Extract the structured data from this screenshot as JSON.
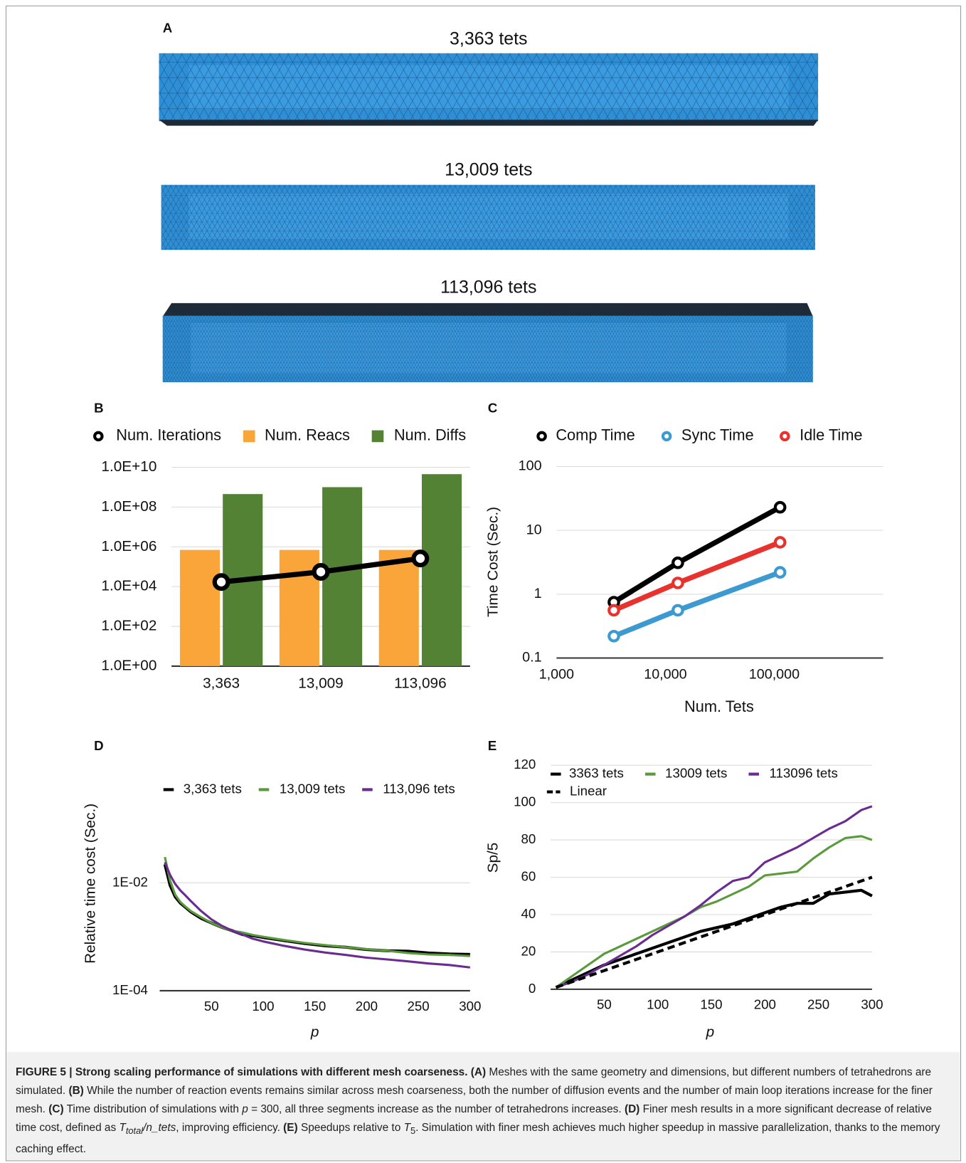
{
  "panel_a": {
    "panel": "A",
    "meshes": [
      "3,363 tets",
      "13,009 tets",
      "113,096 tets"
    ]
  },
  "chart_data": [
    {
      "type": "bar",
      "panel": "B",
      "categories": [
        "3,363",
        "13,009",
        "113,096"
      ],
      "ylog": true,
      "ylim": [
        1,
        10000000000
      ],
      "yticks": [
        {
          "value": 1,
          "label": "1.0E+00"
        },
        {
          "value": 100,
          "label": "1.0E+02"
        },
        {
          "value": 10000,
          "label": "1.0E+04"
        },
        {
          "value": 1000000,
          "label": "1.0E+06"
        },
        {
          "value": 100000000,
          "label": "1.0E+08"
        },
        {
          "value": 10000000000,
          "label": "1.0E+10"
        }
      ],
      "grid": true,
      "markers": true,
      "series": [
        {
          "name": "Num. Iterations",
          "type": "line",
          "color": "#000000",
          "values": [
            17000,
            55000,
            260000
          ]
        },
        {
          "name": "Num. Reacs",
          "type": "bar",
          "color": "#f9a53a",
          "values": [
            700000,
            700000,
            700000
          ]
        },
        {
          "name": "Num. Diffs",
          "type": "bar",
          "color": "#548235",
          "values": [
            450000000,
            1000000000,
            4500000000
          ]
        }
      ]
    },
    {
      "type": "line",
      "panel": "C",
      "xlabel": "Num. Tets",
      "ylabel": "Time Cost (Sec.)",
      "xlog": true,
      "ylog": true,
      "x": [
        3363,
        13009,
        113096
      ],
      "xlim": [
        1000,
        1000000
      ],
      "xticks": [
        {
          "value": 1000,
          "label": "1,000"
        },
        {
          "value": 10000,
          "label": "10,000"
        },
        {
          "value": 100000,
          "label": "100,000"
        }
      ],
      "ylim": [
        0.1,
        100
      ],
      "yticks": [
        0.1,
        1,
        10,
        100
      ],
      "grid": true,
      "markers": true,
      "series": [
        {
          "name": "Comp Time",
          "color": "#000000",
          "values": [
            0.75,
            3.1,
            23
          ]
        },
        {
          "name": "Sync Time",
          "color": "#3d9ad1",
          "values": [
            0.22,
            0.56,
            2.2
          ]
        },
        {
          "name": "Idle Time",
          "color": "#e8322e",
          "values": [
            0.56,
            1.5,
            6.5
          ]
        }
      ]
    },
    {
      "type": "line",
      "panel": "D",
      "xlabel": "p",
      "ylabel": "Relative time cost (Sec.)",
      "ylog": true,
      "x": [
        5,
        10,
        15,
        20,
        25,
        30,
        40,
        50,
        60,
        70,
        80,
        90,
        100,
        120,
        140,
        160,
        180,
        200,
        220,
        240,
        260,
        280,
        300
      ],
      "xlim": [
        0,
        300
      ],
      "xticks": [
        50,
        100,
        150,
        200,
        250,
        300
      ],
      "ylim": [
        0.0001,
        0.05
      ],
      "yticks": [
        {
          "value": 0.0001,
          "label": "1E-04"
        },
        {
          "value": 0.01,
          "label": "1E-02"
        }
      ],
      "grid": true,
      "markers": false,
      "series": [
        {
          "name": "3,363 tets",
          "color": "#000000",
          "values": [
            0.022,
            0.009,
            0.0055,
            0.0042,
            0.0035,
            0.0029,
            0.0022,
            0.0018,
            0.0015,
            0.0013,
            0.0011,
            0.00105,
            0.00097,
            0.00085,
            0.00075,
            0.00068,
            0.00064,
            0.00058,
            0.00055,
            0.00054,
            0.0005,
            0.00048,
            0.00047
          ]
        },
        {
          "name": "13,009 tets",
          "color": "#5a9a3c",
          "values": [
            0.03,
            0.011,
            0.006,
            0.0044,
            0.0036,
            0.003,
            0.0023,
            0.0018,
            0.0015,
            0.0013,
            0.0012,
            0.00108,
            0.001,
            0.00087,
            0.00077,
            0.0007,
            0.00064,
            0.00059,
            0.00055,
            0.0005,
            0.00047,
            0.00046,
            0.00044
          ]
        },
        {
          "name": "113,096 tets",
          "color": "#6a2c91",
          "values": [
            0.024,
            0.014,
            0.0095,
            0.0072,
            0.0058,
            0.0046,
            0.003,
            0.0021,
            0.0016,
            0.0013,
            0.0011,
            0.00092,
            0.00082,
            0.00068,
            0.00058,
            0.00051,
            0.00046,
            0.00041,
            0.00038,
            0.00035,
            0.00032,
            0.0003,
            0.00027
          ]
        }
      ]
    },
    {
      "type": "line",
      "panel": "E",
      "xlabel": "p",
      "ylabel": "Sp/5",
      "x": [
        5,
        20,
        35,
        50,
        65,
        80,
        95,
        110,
        125,
        140,
        155,
        170,
        185,
        200,
        215,
        230,
        245,
        260,
        275,
        290,
        300
      ],
      "xlim": [
        0,
        300
      ],
      "xticks": [
        50,
        100,
        150,
        200,
        250,
        300
      ],
      "ylim": [
        0,
        120
      ],
      "yticks": [
        0,
        20,
        40,
        60,
        80,
        100,
        120
      ],
      "grid": true,
      "markers": false,
      "series": [
        {
          "name": "3363 tets",
          "color": "#000000",
          "values": [
            1,
            5,
            9,
            13,
            16,
            19,
            22,
            25,
            28,
            31,
            33,
            35,
            38,
            41,
            44,
            46,
            46,
            51,
            52,
            53,
            50
          ]
        },
        {
          "name": "13009 tets",
          "color": "#5a9a3c",
          "values": [
            1,
            7,
            13,
            19,
            23,
            27,
            31,
            35,
            39,
            44,
            47,
            51,
            55,
            61,
            62,
            63,
            70,
            76,
            81,
            82,
            80
          ]
        },
        {
          "name": "113096 tets",
          "color": "#6a2c91",
          "values": [
            1,
            4,
            8,
            13,
            18,
            23,
            29,
            34,
            39,
            45,
            52,
            58,
            60,
            68,
            72,
            76,
            81,
            86,
            90,
            96,
            98
          ]
        },
        {
          "name": "Linear",
          "color": "#000000",
          "dash": true,
          "values": [
            1,
            4,
            7,
            10,
            13,
            16,
            19,
            22,
            25,
            28,
            31,
            34,
            37,
            40,
            43,
            46,
            49,
            52,
            55,
            58,
            60
          ]
        }
      ]
    }
  ],
  "caption": {
    "title": "FIGURE 5 | Strong scaling performance of simulations with different mesh coarseness.",
    "a_label": "(A)",
    "a_text": "Meshes with the same geometry and dimensions, but different numbers of tetrahedrons are simulated.",
    "b_label": "(B)",
    "b_text": "While the number of reaction events remains similar across mesh coarseness, both the number of diffusion events and the number of main loop iterations increase for the finer mesh.",
    "c_label": "(C)",
    "c_text_1": "Time distribution of simulations with",
    "c_p": "p",
    "c_text_2": "= 300, all three segments increase as the number of tetrahedrons increases.",
    "d_label": "(D)",
    "d_text_1": "Finer mesh results in a more significant decrease of relative time cost, defined as",
    "d_t": "T",
    "d_sub": "total",
    "d_rest": "/n_tets",
    "d_text_2": ", improving efficiency.",
    "e_label": "(E)",
    "e_text_1": "Speedups relative to",
    "e_t": "T",
    "e_sub": "5",
    "e_text_2": ". Simulation with finer mesh achieves much higher speedup in massive parallelization, thanks to the memory caching effect."
  }
}
